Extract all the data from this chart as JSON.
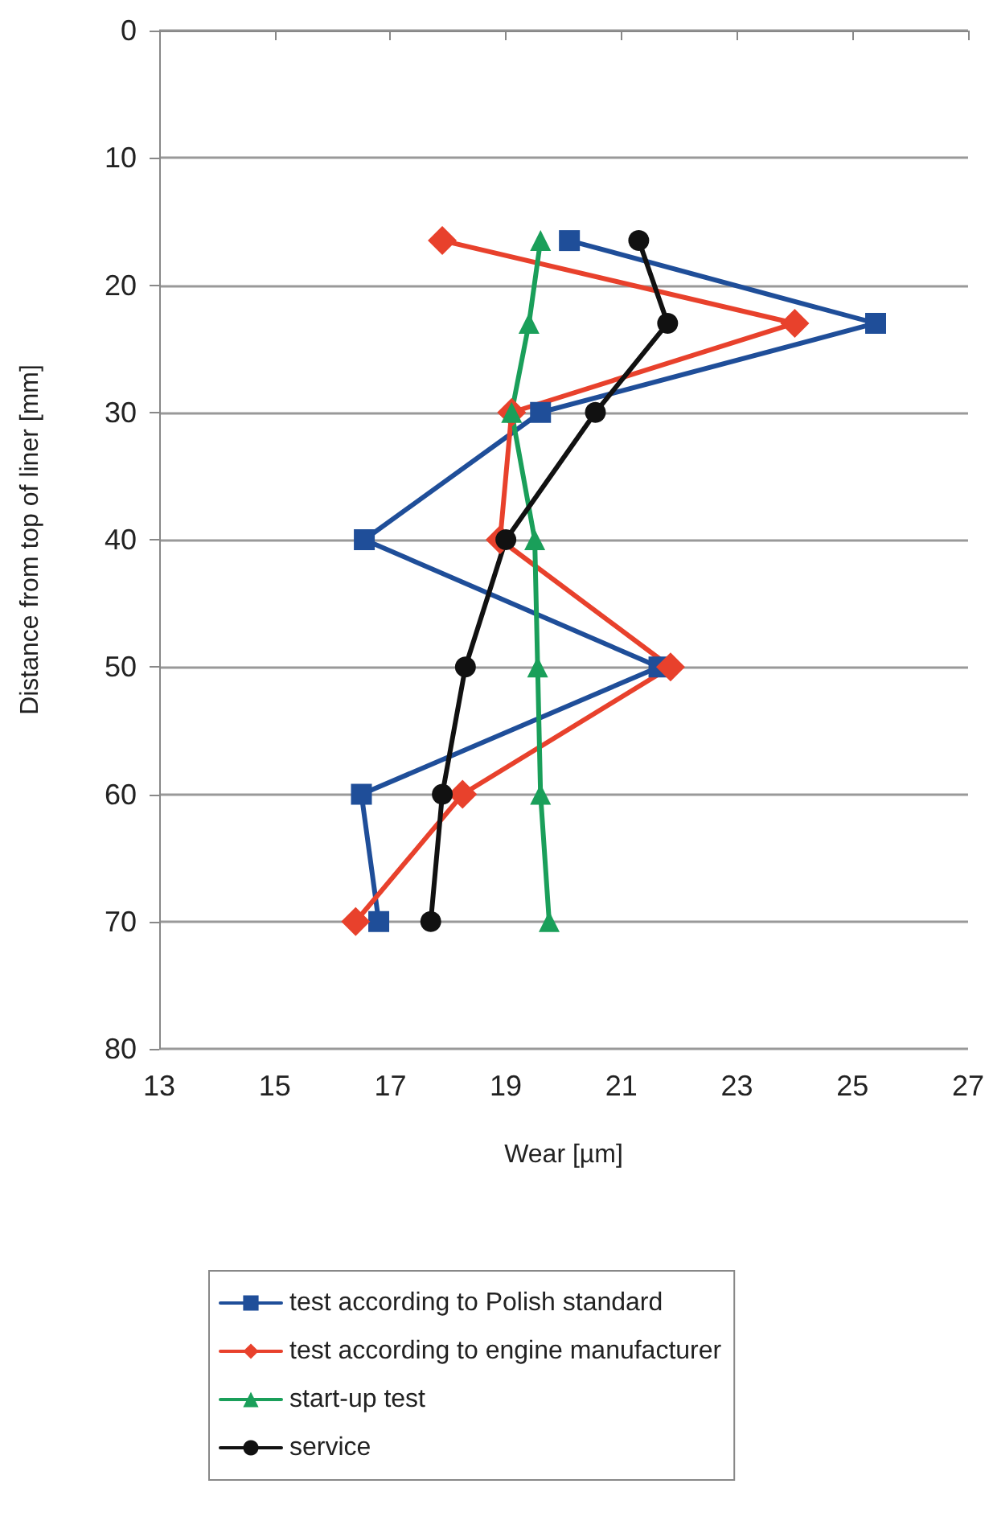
{
  "chart_data": {
    "type": "line",
    "xlabel": "Wear [µm]",
    "ylabel": "Distance from top of liner [mm]",
    "xlim": [
      13,
      27
    ],
    "xticks": [
      13,
      15,
      17,
      19,
      21,
      23,
      25,
      27
    ],
    "ylim": [
      80,
      0
    ],
    "yticks": [
      0,
      10,
      20,
      30,
      40,
      50,
      60,
      70,
      80
    ],
    "grid": "y",
    "legend": "bottom",
    "series": [
      {
        "name": "test according to Polish standard",
        "color": "#1f4e99",
        "marker": "square",
        "x": [
          20.1,
          25.4,
          19.6,
          16.55,
          21.65,
          16.5,
          16.8
        ],
        "values": [
          16.5,
          23,
          30,
          40,
          50,
          60,
          70
        ]
      },
      {
        "name": "test according to engine manufacturer",
        "color": "#e8412c",
        "marker": "diamond",
        "x": [
          17.9,
          24.0,
          19.1,
          18.9,
          21.85,
          18.25,
          16.4
        ],
        "values": [
          16.5,
          23,
          30,
          40,
          50,
          60,
          70
        ]
      },
      {
        "name": "start-up test",
        "color": "#1a9f5a",
        "marker": "triangle",
        "x": [
          19.6,
          19.4,
          19.1,
          19.5,
          19.55,
          19.6,
          19.75
        ],
        "values": [
          16.5,
          23,
          30,
          40,
          50,
          60,
          70
        ]
      },
      {
        "name": "service",
        "color": "#111111",
        "marker": "circle",
        "x": [
          21.3,
          21.8,
          20.55,
          19.0,
          18.3,
          17.9,
          17.7
        ],
        "values": [
          16.5,
          23,
          30,
          40,
          50,
          60,
          70
        ]
      }
    ]
  }
}
